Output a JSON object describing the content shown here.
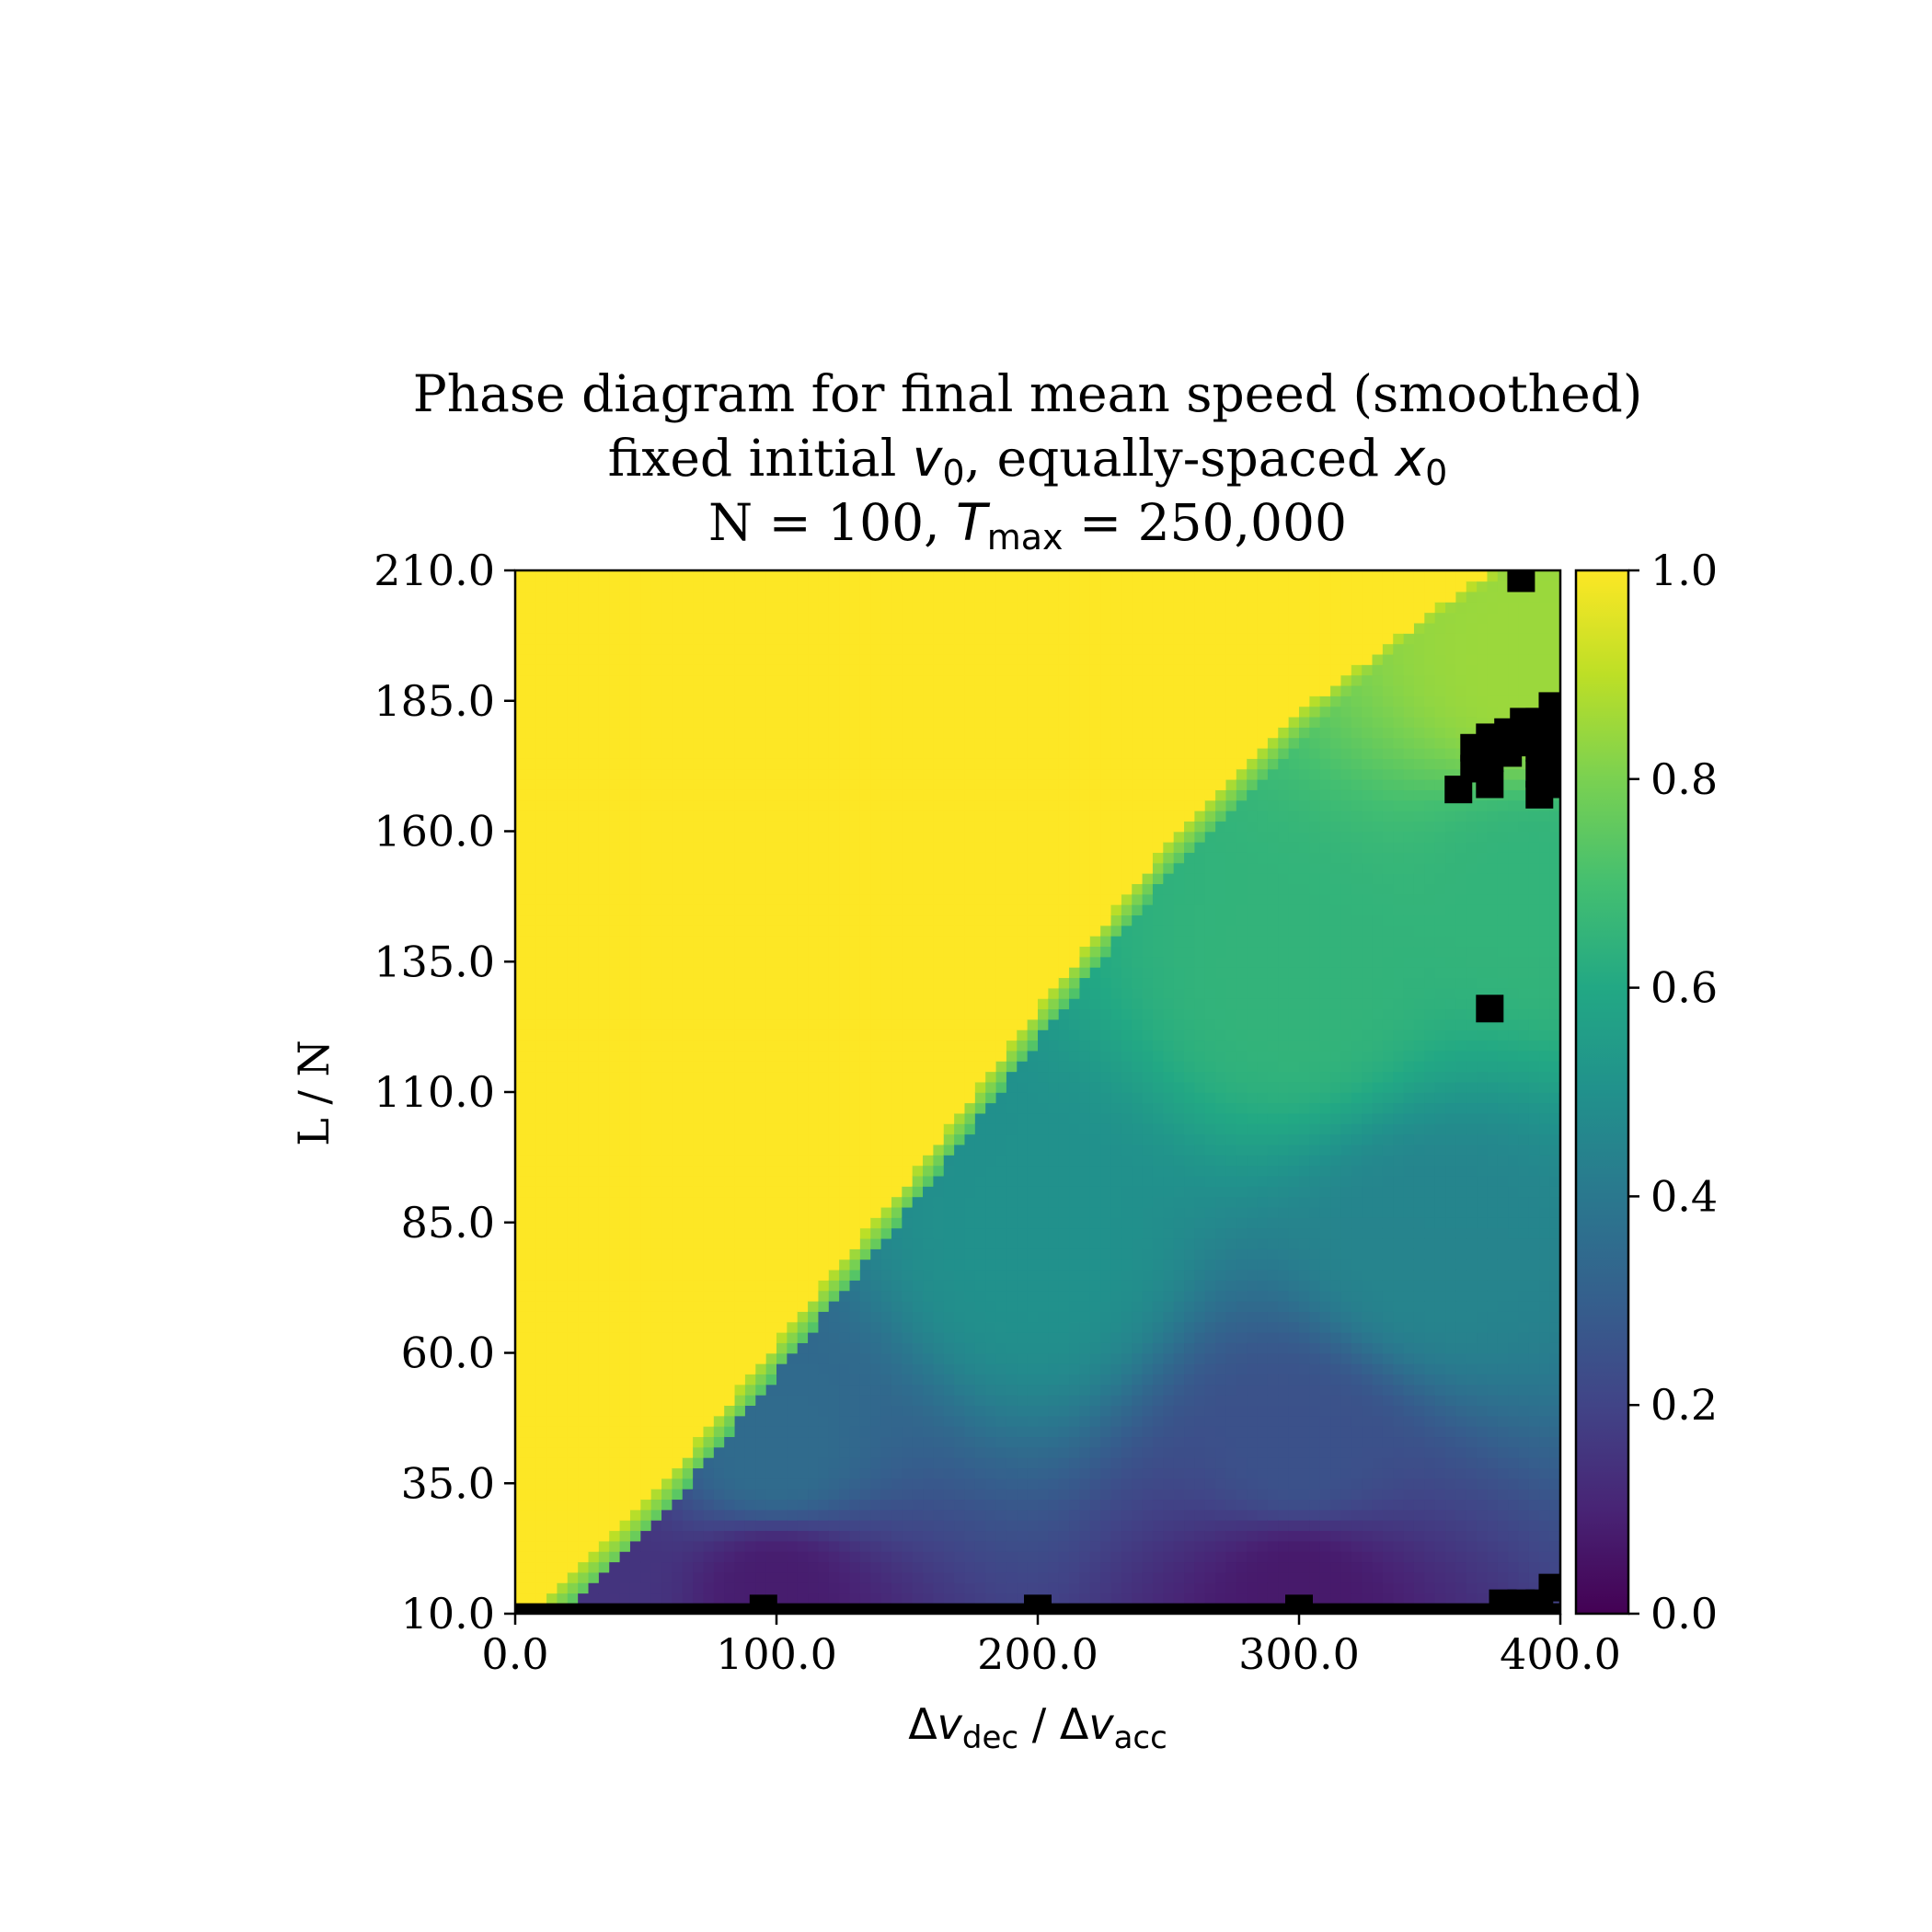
{
  "chart_data": {
    "type": "heatmap",
    "title": {
      "line1": "Phase diagram for final mean speed (smoothed)",
      "line2_prefix": "fixed initial ",
      "line2_v": "v",
      "line2_v_sub": "0",
      "line2_middle": ", equally-spaced ",
      "line2_x": "x",
      "line2_x_sub": "0",
      "line3_prefix": "N = 100, ",
      "line3_T": "T",
      "line3_T_sub": "max",
      "line3_suffix": " = 250,000"
    },
    "xlabel": {
      "delta1": "Δ",
      "v1": "v",
      "sub1": "dec",
      "sep": " / ",
      "delta2": "Δ",
      "v2": "v",
      "sub2": "acc"
    },
    "ylabel": "L / N",
    "xlim": [
      0,
      400
    ],
    "ylim": [
      10,
      210
    ],
    "x_ticks": [
      "0.0",
      "100.0",
      "200.0",
      "300.0",
      "400.0"
    ],
    "x_tick_values": [
      0,
      100,
      200,
      300,
      400
    ],
    "y_ticks": [
      "10.0",
      "35.0",
      "60.0",
      "85.0",
      "110.0",
      "135.0",
      "160.0",
      "185.0",
      "210.0"
    ],
    "y_tick_values": [
      10,
      35,
      60,
      85,
      110,
      135,
      160,
      185,
      210
    ],
    "colorbar": {
      "colormap": "viridis",
      "range": [
        0,
        1
      ],
      "ticks": [
        "0.0",
        "0.2",
        "0.4",
        "0.6",
        "0.8",
        "1.0"
      ],
      "tick_values": [
        0,
        0.2,
        0.4,
        0.6,
        0.8,
        1.0
      ]
    },
    "missing_color": "#000000",
    "regions": {
      "free_flow_value": 1.0,
      "boundary_line": [
        [
          0,
          10
        ],
        [
          10,
          12
        ],
        [
          20,
          17
        ],
        [
          40,
          26
        ],
        [
          60,
          37
        ],
        [
          100,
          62
        ],
        [
          150,
          93
        ],
        [
          200,
          126
        ],
        [
          250,
          158
        ],
        [
          300,
          183
        ],
        [
          350,
          202
        ],
        [
          375,
          210
        ]
      ],
      "congested_field_samples": [
        {
          "x": 30,
          "y": 15,
          "value": 0.15
        },
        {
          "x": 100,
          "y": 15,
          "value": 0.08
        },
        {
          "x": 300,
          "y": 15,
          "value": 0.07
        },
        {
          "x": 100,
          "y": 40,
          "value": 0.35
        },
        {
          "x": 300,
          "y": 40,
          "value": 0.25
        },
        {
          "x": 200,
          "y": 80,
          "value": 0.5
        },
        {
          "x": 350,
          "y": 80,
          "value": 0.45
        },
        {
          "x": 300,
          "y": 130,
          "value": 0.65
        },
        {
          "x": 390,
          "y": 150,
          "value": 0.65
        },
        {
          "x": 390,
          "y": 190,
          "value": 0.85
        }
      ]
    },
    "missing_cells": [
      {
        "x": 385,
        "y": 208.5
      },
      {
        "x": 397,
        "y": 184
      },
      {
        "x": 397,
        "y": 179
      },
      {
        "x": 397,
        "y": 174
      },
      {
        "x": 397,
        "y": 169
      },
      {
        "x": 392,
        "y": 181
      },
      {
        "x": 392,
        "y": 176
      },
      {
        "x": 392,
        "y": 171
      },
      {
        "x": 392,
        "y": 167
      },
      {
        "x": 386,
        "y": 181
      },
      {
        "x": 386,
        "y": 177
      },
      {
        "x": 380,
        "y": 179
      },
      {
        "x": 380,
        "y": 175
      },
      {
        "x": 373,
        "y": 178
      },
      {
        "x": 373,
        "y": 174
      },
      {
        "x": 373,
        "y": 169
      },
      {
        "x": 367,
        "y": 176
      },
      {
        "x": 367,
        "y": 172
      },
      {
        "x": 361,
        "y": 168
      },
      {
        "x": 373,
        "y": 126
      },
      {
        "x": 397,
        "y": 15
      },
      {
        "x": 392,
        "y": 12
      },
      {
        "x": 385,
        "y": 12
      },
      {
        "x": 378,
        "y": 12
      },
      {
        "x": 95,
        "y": 11
      },
      {
        "x": 200,
        "y": 11
      },
      {
        "x": 300,
        "y": 11
      }
    ]
  }
}
